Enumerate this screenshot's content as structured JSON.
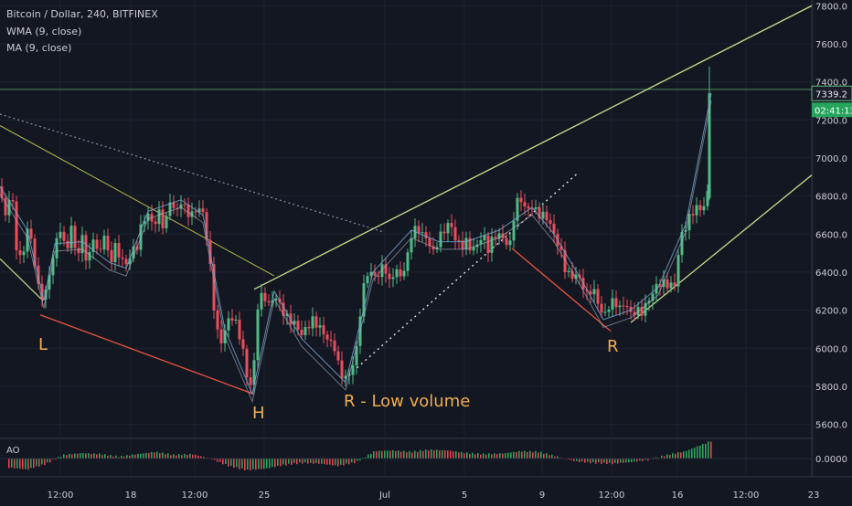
{
  "chart_data": {
    "type": "candlestick",
    "title": "Bitcoin / Dollar, 240, BITFINEX",
    "indicators": [
      "WMA (9, close)",
      "MA (9, close)"
    ],
    "y_ticks": [
      "7800.0",
      "7600.0",
      "7400.0",
      "7200.0",
      "7000.0",
      "6800.0",
      "6600.0",
      "6400.0",
      "6200.0",
      "6000.0",
      "5800.0",
      "5600.0"
    ],
    "ylim": [
      5550,
      7830
    ],
    "x_ticks": [
      "12:00",
      "18",
      "12:00",
      "25",
      "Jul",
      "5",
      "9",
      "12:00",
      "16",
      "12:00",
      "23"
    ],
    "last_price_label": "7339.2",
    "countdown_label": "02:41:13",
    "price_line": 7360,
    "oscillator": {
      "name": "AO",
      "tick": "0.0000"
    },
    "annotations": [
      {
        "text": "L"
      },
      {
        "text": "H"
      },
      {
        "text": "R - Low volume"
      },
      {
        "text": "R"
      }
    ],
    "price_path": [
      [
        0,
        6850
      ],
      [
        6,
        6700
      ],
      [
        12,
        6880
      ],
      [
        18,
        6550
      ],
      [
        24,
        6450
      ],
      [
        30,
        6620
      ],
      [
        36,
        6500
      ],
      [
        42,
        6300
      ],
      [
        48,
        6250
      ],
      [
        54,
        6400
      ],
      [
        60,
        6550
      ],
      [
        66,
        6650
      ],
      [
        72,
        6500
      ],
      [
        78,
        6620
      ],
      [
        84,
        6450
      ],
      [
        90,
        6560
      ],
      [
        96,
        6430
      ],
      [
        102,
        6600
      ],
      [
        108,
        6500
      ],
      [
        114,
        6620
      ],
      [
        120,
        6450
      ],
      [
        126,
        6520
      ],
      [
        132,
        6450
      ],
      [
        138,
        6420
      ],
      [
        144,
        6500
      ],
      [
        150,
        6550
      ],
      [
        156,
        6700
      ],
      [
        162,
        6720
      ],
      [
        168,
        6650
      ],
      [
        174,
        6700
      ],
      [
        180,
        6600
      ],
      [
        186,
        6760
      ],
      [
        192,
        6700
      ],
      [
        198,
        6780
      ],
      [
        204,
        6740
      ],
      [
        210,
        6720
      ],
      [
        216,
        6750
      ],
      [
        222,
        6700
      ],
      [
        228,
        6500
      ],
      [
        234,
        6200
      ],
      [
        240,
        6000
      ],
      [
        246,
        6100
      ],
      [
        252,
        6200
      ],
      [
        258,
        6150
      ],
      [
        264,
        6050
      ],
      [
        270,
        5850
      ],
      [
        276,
        5760
      ],
      [
        282,
        6200
      ],
      [
        288,
        6280
      ],
      [
        294,
        6230
      ],
      [
        300,
        6300
      ],
      [
        306,
        6250
      ],
      [
        312,
        6180
      ],
      [
        318,
        6140
      ],
      [
        324,
        6100
      ],
      [
        330,
        6050
      ],
      [
        336,
        6100
      ],
      [
        342,
        6150
      ],
      [
        348,
        6140
      ],
      [
        354,
        6100
      ],
      [
        360,
        6050
      ],
      [
        366,
        6000
      ],
      [
        372,
        5850
      ],
      [
        378,
        5820
      ],
      [
        384,
        5860
      ],
      [
        390,
        6000
      ],
      [
        396,
        6300
      ],
      [
        402,
        6420
      ],
      [
        408,
        6400
      ],
      [
        414,
        6380
      ],
      [
        420,
        6430
      ],
      [
        426,
        6320
      ],
      [
        432,
        6400
      ],
      [
        438,
        6380
      ],
      [
        444,
        6450
      ],
      [
        450,
        6620
      ],
      [
        456,
        6650
      ],
      [
        462,
        6600
      ],
      [
        468,
        6550
      ],
      [
        474,
        6480
      ],
      [
        480,
        6560
      ],
      [
        486,
        6620
      ],
      [
        492,
        6680
      ],
      [
        498,
        6600
      ],
      [
        504,
        6550
      ],
      [
        510,
        6560
      ],
      [
        516,
        6500
      ],
      [
        522,
        6520
      ],
      [
        528,
        6580
      ],
      [
        534,
        6520
      ],
      [
        540,
        6600
      ],
      [
        546,
        6620
      ],
      [
        552,
        6580
      ],
      [
        558,
        6550
      ],
      [
        564,
        6750
      ],
      [
        570,
        6760
      ],
      [
        576,
        6700
      ],
      [
        582,
        6740
      ],
      [
        588,
        6720
      ],
      [
        594,
        6720
      ],
      [
        600,
        6700
      ],
      [
        606,
        6600
      ],
      [
        612,
        6520
      ],
      [
        618,
        6400
      ],
      [
        624,
        6350
      ],
      [
        630,
        6380
      ],
      [
        636,
        6360
      ],
      [
        642,
        6300
      ],
      [
        648,
        6340
      ],
      [
        654,
        6250
      ],
      [
        660,
        6150
      ],
      [
        666,
        6200
      ],
      [
        672,
        6230
      ],
      [
        678,
        6200
      ],
      [
        684,
        6250
      ],
      [
        690,
        6200
      ],
      [
        696,
        6220
      ],
      [
        702,
        6200
      ],
      [
        708,
        6230
      ],
      [
        714,
        6270
      ],
      [
        720,
        6320
      ],
      [
        726,
        6330
      ],
      [
        732,
        6340
      ],
      [
        738,
        6350
      ],
      [
        744,
        6600
      ],
      [
        750,
        6650
      ],
      [
        756,
        6700
      ],
      [
        762,
        6720
      ],
      [
        768,
        6700
      ],
      [
        774,
        6800
      ],
      [
        778,
        7340
      ]
    ],
    "volume_path": [
      [
        0,
        6850
      ],
      [
        30,
        6620
      ],
      [
        48,
        6250
      ],
      [
        60,
        6550
      ],
      [
        90,
        6560
      ],
      [
        120,
        6450
      ],
      [
        138,
        6420
      ],
      [
        162,
        6720
      ],
      [
        198,
        6780
      ],
      [
        222,
        6700
      ],
      [
        246,
        6100
      ],
      [
        276,
        5760
      ],
      [
        300,
        6300
      ],
      [
        330,
        6050
      ],
      [
        378,
        5820
      ],
      [
        408,
        6400
      ],
      [
        450,
        6620
      ],
      [
        480,
        6560
      ],
      [
        510,
        6560
      ],
      [
        546,
        6620
      ],
      [
        582,
        6740
      ],
      [
        606,
        6600
      ],
      [
        636,
        6360
      ],
      [
        660,
        6150
      ],
      [
        690,
        6200
      ],
      [
        720,
        6320
      ],
      [
        750,
        6650
      ],
      [
        778,
        7340
      ]
    ],
    "ao_path": [
      [
        10,
        -25
      ],
      [
        30,
        -30
      ],
      [
        50,
        -15
      ],
      [
        70,
        10
      ],
      [
        90,
        15
      ],
      [
        110,
        12
      ],
      [
        130,
        5
      ],
      [
        150,
        12
      ],
      [
        170,
        18
      ],
      [
        190,
        10
      ],
      [
        210,
        12
      ],
      [
        230,
        0
      ],
      [
        250,
        -20
      ],
      [
        270,
        -32
      ],
      [
        290,
        -28
      ],
      [
        310,
        -18
      ],
      [
        330,
        -12
      ],
      [
        350,
        -14
      ],
      [
        370,
        -20
      ],
      [
        390,
        -10
      ],
      [
        410,
        20
      ],
      [
        430,
        22
      ],
      [
        450,
        18
      ],
      [
        470,
        24
      ],
      [
        490,
        22
      ],
      [
        510,
        15
      ],
      [
        530,
        12
      ],
      [
        550,
        14
      ],
      [
        570,
        20
      ],
      [
        590,
        18
      ],
      [
        610,
        5
      ],
      [
        630,
        -8
      ],
      [
        650,
        -12
      ],
      [
        670,
        -14
      ],
      [
        690,
        -10
      ],
      [
        710,
        -4
      ],
      [
        730,
        10
      ],
      [
        750,
        20
      ],
      [
        770,
        40
      ],
      [
        778,
        48
      ]
    ]
  }
}
